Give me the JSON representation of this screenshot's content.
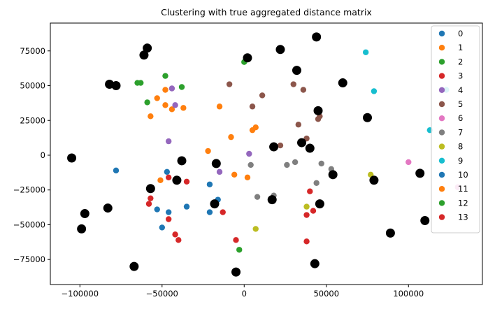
{
  "chart_data": {
    "type": "scatter",
    "title": "Clustering with true aggregated distance matrix",
    "xlabel": "",
    "ylabel": "",
    "xlim": [
      -118000,
      145000
    ],
    "ylim": [
      -93000,
      95000
    ],
    "xticks": [
      -100000,
      -50000,
      0,
      50000,
      100000
    ],
    "xtick_labels": [
      "−100000",
      "−50000",
      "0",
      "50000",
      "100000"
    ],
    "yticks": [
      -75000,
      -50000,
      -25000,
      0,
      25000,
      50000,
      75000
    ],
    "yticklabels": [
      "−75000",
      "−50000",
      "−25000",
      "0",
      "25000",
      "50000",
      "75000"
    ],
    "grid": false,
    "legend_position": "upper right",
    "series": [
      {
        "name": "0",
        "color": "#1f77b4",
        "points": [
          [
            -78000,
            -11000
          ],
          [
            -47000,
            -12000
          ],
          [
            -53000,
            -39000
          ],
          [
            -46000,
            -41000
          ],
          [
            -50000,
            -52000
          ],
          [
            -35000,
            -37000
          ],
          [
            -21000,
            -21000
          ],
          [
            -21000,
            -41000
          ],
          [
            -16000,
            -32000
          ]
        ]
      },
      {
        "name": "1",
        "color": "#ff7f0e",
        "points": [
          [
            -53000,
            41000
          ],
          [
            -48000,
            47000
          ],
          [
            -48000,
            36000
          ],
          [
            -44000,
            33000
          ],
          [
            -37000,
            34000
          ],
          [
            -57000,
            28000
          ],
          [
            -15000,
            35000
          ],
          [
            -8000,
            13000
          ],
          [
            -22000,
            3000
          ],
          [
            -6000,
            -14000
          ],
          [
            2000,
            -16000
          ],
          [
            5000,
            18000
          ],
          [
            7000,
            20000
          ],
          [
            -51000,
            -18000
          ]
        ]
      },
      {
        "name": "2",
        "color": "#2ca02c",
        "points": [
          [
            -65000,
            52000
          ],
          [
            -63000,
            52000
          ],
          [
            -48000,
            57000
          ],
          [
            -59000,
            38000
          ],
          [
            -38000,
            49000
          ],
          [
            0,
            67000
          ],
          [
            -3000,
            -68000
          ]
        ]
      },
      {
        "name": "3",
        "color": "#d62728",
        "points": [
          [
            -57000,
            -31000
          ],
          [
            -58000,
            -35000
          ],
          [
            -46000,
            -16000
          ],
          [
            -35000,
            -19000
          ],
          [
            -46000,
            -46000
          ],
          [
            -42000,
            -57000
          ],
          [
            -40000,
            -61000
          ],
          [
            -13000,
            -41000
          ],
          [
            -5000,
            -61000
          ],
          [
            40000,
            -26000
          ],
          [
            38000,
            -43000
          ],
          [
            42000,
            -40000
          ],
          [
            38000,
            -62000
          ]
        ]
      },
      {
        "name": "4",
        "color": "#9467bd",
        "points": [
          [
            -44000,
            48000
          ],
          [
            -42000,
            36000
          ],
          [
            -46000,
            10000
          ],
          [
            -15000,
            -12000
          ],
          [
            3000,
            1000
          ]
        ]
      },
      {
        "name": "5",
        "color": "#8c564b",
        "points": [
          [
            -9000,
            51000
          ],
          [
            5000,
            35000
          ],
          [
            11000,
            43000
          ],
          [
            30000,
            51000
          ],
          [
            36000,
            47000
          ],
          [
            33000,
            22000
          ],
          [
            46000,
            28000
          ],
          [
            45000,
            26000
          ],
          [
            38000,
            12000
          ],
          [
            22000,
            7000
          ]
        ]
      },
      {
        "name": "6",
        "color": "#e377c2",
        "points": [
          [
            100000,
            -5000
          ],
          [
            130000,
            -23000
          ]
        ]
      },
      {
        "name": "7",
        "color": "#7f7f7f",
        "points": [
          [
            4000,
            -7000
          ],
          [
            26000,
            -7000
          ],
          [
            31000,
            -5000
          ],
          [
            47000,
            -6000
          ],
          [
            53000,
            -10000
          ],
          [
            44000,
            -20000
          ],
          [
            8000,
            -30000
          ],
          [
            18000,
            -29000
          ]
        ]
      },
      {
        "name": "8",
        "color": "#bcbd22",
        "points": [
          [
            7000,
            -53000
          ],
          [
            38000,
            -37000
          ],
          [
            77000,
            -14000
          ]
        ]
      },
      {
        "name": "9",
        "color": "#17becf",
        "points": [
          [
            74000,
            74000
          ],
          [
            79000,
            46000
          ],
          [
            113000,
            18000
          ],
          [
            123000,
            47000
          ]
        ]
      }
    ],
    "centers": {
      "color": "#000000",
      "points": [
        [
          -105000,
          -2000
        ],
        [
          -82000,
          51000
        ],
        [
          -78000,
          50000
        ],
        [
          -61000,
          72000
        ],
        [
          -59000,
          77000
        ],
        [
          -83000,
          -38000
        ],
        [
          -97000,
          -42000
        ],
        [
          -99000,
          -53000
        ],
        [
          -67000,
          -80000
        ],
        [
          -57000,
          -24000
        ],
        [
          -41000,
          -18000
        ],
        [
          -38000,
          -4000
        ],
        [
          -17000,
          -6000
        ],
        [
          -18000,
          -35000
        ],
        [
          2000,
          70000
        ],
        [
          -5000,
          -84000
        ],
        [
          22000,
          76000
        ],
        [
          32000,
          61000
        ],
        [
          44000,
          85000
        ],
        [
          45000,
          32000
        ],
        [
          35000,
          9000
        ],
        [
          40000,
          5000
        ],
        [
          18000,
          6000
        ],
        [
          17000,
          -32000
        ],
        [
          46000,
          -35000
        ],
        [
          54000,
          -14000
        ],
        [
          43000,
          -78000
        ],
        [
          60000,
          52000
        ],
        [
          75000,
          27000
        ],
        [
          79000,
          -18000
        ],
        [
          89000,
          -56000
        ],
        [
          107000,
          -13000
        ],
        [
          110000,
          -47000
        ]
      ]
    },
    "legend_entries": [
      {
        "label": "0",
        "color": "#1f77b4"
      },
      {
        "label": "1",
        "color": "#ff7f0e"
      },
      {
        "label": "2",
        "color": "#2ca02c"
      },
      {
        "label": "3",
        "color": "#d62728"
      },
      {
        "label": "4",
        "color": "#9467bd"
      },
      {
        "label": "5",
        "color": "#8c564b"
      },
      {
        "label": "6",
        "color": "#e377c2"
      },
      {
        "label": "7",
        "color": "#7f7f7f"
      },
      {
        "label": "8",
        "color": "#bcbd22"
      },
      {
        "label": "9",
        "color": "#17becf"
      },
      {
        "label": "10",
        "color": "#1f77b4"
      },
      {
        "label": "11",
        "color": "#ff7f0e"
      },
      {
        "label": "12",
        "color": "#2ca02c"
      },
      {
        "label": "13",
        "color": "#d62728"
      }
    ]
  }
}
